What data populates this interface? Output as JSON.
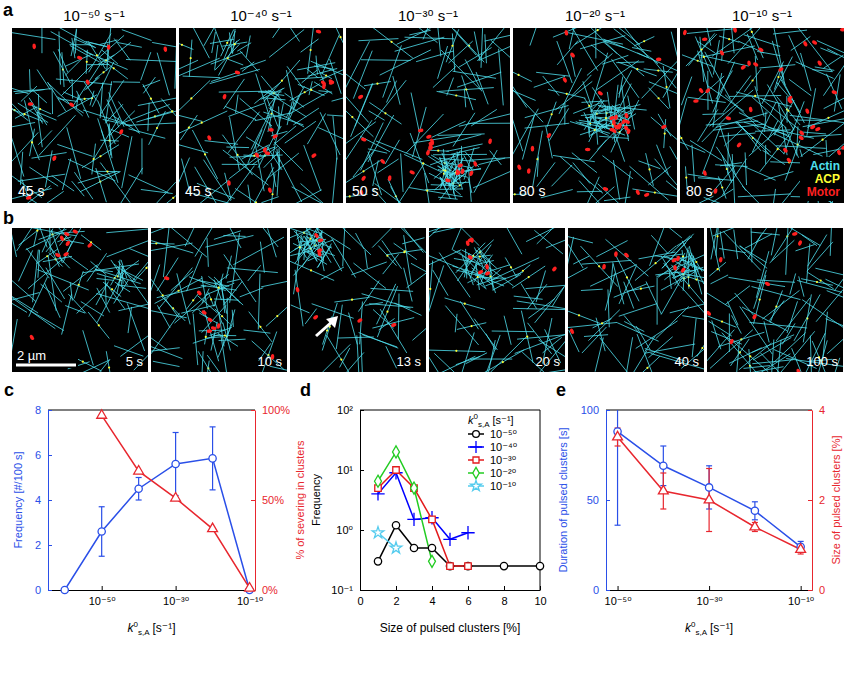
{
  "image_panels": {
    "a": {
      "letter": "a",
      "titles": [
        "10⁻⁵⁰ s⁻¹",
        "10⁻⁴⁰ s⁻¹",
        "10⁻³⁰ s⁻¹",
        "10⁻²⁰ s⁻¹",
        "10⁻¹⁰ s⁻¹"
      ],
      "times": [
        "45 s",
        "45 s",
        "50 s",
        "80 s",
        "80 s"
      ],
      "legend": [
        {
          "name": "Actin",
          "color": "#4fe0ef"
        },
        {
          "name": "ACP",
          "color": "#ffff33"
        },
        {
          "name": "Motor",
          "color": "#ff2020"
        }
      ]
    },
    "b": {
      "letter": "b",
      "times": [
        "5 s",
        "10 s",
        "13 s",
        "20 s",
        "40 s",
        "100 s"
      ],
      "scale_bar": "2 µm"
    }
  },
  "chart_data": [
    {
      "panel_label": "c",
      "type": "line",
      "log": "x",
      "xlim": [
        3e-65,
        3e-09
      ],
      "xticks": [
        {
          "value": 1e-50,
          "label": "10⁻⁵⁰"
        },
        {
          "value": 1e-30,
          "label": "10⁻³⁰"
        },
        {
          "value": 1e-10,
          "label": "10⁻¹⁰"
        }
      ],
      "x_label": {
        "symbol": "k",
        "sup": "0",
        "sub": "s,A",
        "unit": "[s⁻¹]"
      },
      "ylim": [
        0,
        8
      ],
      "yticks": [
        0,
        2,
        4,
        6,
        8
      ],
      "y_label": "Frequency [#/100 s]",
      "y2lim": [
        0,
        100
      ],
      "y2ticks": [
        {
          "value": 0,
          "label": "0%"
        },
        {
          "value": 50,
          "label": "50%"
        },
        {
          "value": 100,
          "label": "100%"
        }
      ],
      "y2_label": "% of severing in clusters",
      "x": [
        1e-60,
        1e-50,
        1e-40,
        1e-30,
        1e-20,
        1e-10
      ],
      "series": [
        {
          "color": "#2a4fe8",
          "marker": "circle",
          "values": [
            0,
            2.6,
            4.5,
            5.6,
            5.85,
            0
          ],
          "errors": [
            null,
            1.1,
            0.5,
            1.4,
            1.4,
            null
          ]
        },
        {
          "color": "#e8262e",
          "marker": "triangle",
          "axis": "y2",
          "values": [
            null,
            97,
            66,
            51,
            34,
            1
          ]
        }
      ]
    },
    {
      "panel_label": "d",
      "type": "line",
      "log": "y",
      "xlim": [
        0,
        10
      ],
      "xticks": [
        0,
        2,
        4,
        6,
        8,
        10
      ],
      "x_label": "Size of pulsed clusters [%]",
      "ylim": [
        0.1,
        100
      ],
      "yticks": [
        {
          "value": 0.1,
          "label": "10⁻¹"
        },
        {
          "value": 1,
          "label": "10⁰"
        },
        {
          "value": 10,
          "label": "10¹"
        },
        {
          "value": 100,
          "label": "10²"
        }
      ],
      "y_label": "Frequency",
      "legend": "top-right",
      "legend_title": {
        "symbol": "k",
        "sup": "0",
        "sub": "s,A",
        "unit": "[s⁻¹]"
      },
      "series": [
        {
          "name": "10⁻⁵⁰",
          "color": "#000000",
          "marker": "circle",
          "x": [
            1,
            2,
            3,
            4,
            5,
            6,
            8,
            10
          ],
          "values": [
            0.3,
            1.2,
            0.5,
            0.5,
            0.25,
            0.25,
            0.25,
            0.25
          ]
        },
        {
          "name": "10⁻⁴⁰",
          "color": "#0000ff",
          "marker": "plus",
          "x": [
            1,
            2,
            3,
            4,
            5,
            6
          ],
          "values": [
            4,
            9,
            1.5,
            1.6,
            0.7,
            0.9
          ]
        },
        {
          "name": "10⁻³⁰",
          "color": "#e31a1c",
          "marker": "square",
          "x": [
            1,
            2,
            3,
            4,
            5,
            6
          ],
          "values": [
            5,
            10,
            5,
            1.5,
            0.25,
            0.25
          ]
        },
        {
          "name": "10⁻²⁰",
          "color": "#22cc22",
          "marker": "diamond",
          "x": [
            1,
            2,
            3,
            4
          ],
          "values": [
            6.5,
            20,
            5,
            0.3
          ]
        },
        {
          "name": "10⁻¹⁰",
          "color": "#55ccee",
          "marker": "star",
          "x": [
            1,
            2
          ],
          "values": [
            0.9,
            0.5
          ]
        }
      ]
    },
    {
      "panel_label": "e",
      "type": "line",
      "log": "x",
      "xlim": [
        3e-53,
        3e-08
      ],
      "xticks": [
        {
          "value": 1e-50,
          "label": "10⁻⁵⁰"
        },
        {
          "value": 1e-30,
          "label": "10⁻³⁰"
        },
        {
          "value": 1e-10,
          "label": "10⁻¹⁰"
        }
      ],
      "x_label": {
        "symbol": "k",
        "sup": "0",
        "sub": "s,A",
        "unit": "[s⁻¹]"
      },
      "ylim": [
        0,
        100
      ],
      "yticks": [
        0,
        50,
        100
      ],
      "y_label": "Duration of pulsed clusters [s]",
      "y2lim": [
        0,
        4
      ],
      "y2ticks": [
        0,
        2,
        4
      ],
      "y2_label": "Size of pulsed clusters [%]",
      "x": [
        1e-50,
        1e-40,
        1e-30,
        1e-20,
        1e-10
      ],
      "series": [
        {
          "color": "#2a4fe8",
          "marker": "circle",
          "values": [
            88,
            69,
            57,
            44,
            24
          ],
          "errors": [
            52,
            11,
            12,
            5,
            3
          ]
        },
        {
          "color": "#e8262e",
          "marker": "triangle",
          "axis": "y2",
          "values": [
            3.4,
            2.2,
            2.0,
            1.4,
            0.9
          ],
          "errors": [
            0.2,
            0.4,
            0.7,
            0.1,
            0.1
          ]
        }
      ]
    }
  ]
}
